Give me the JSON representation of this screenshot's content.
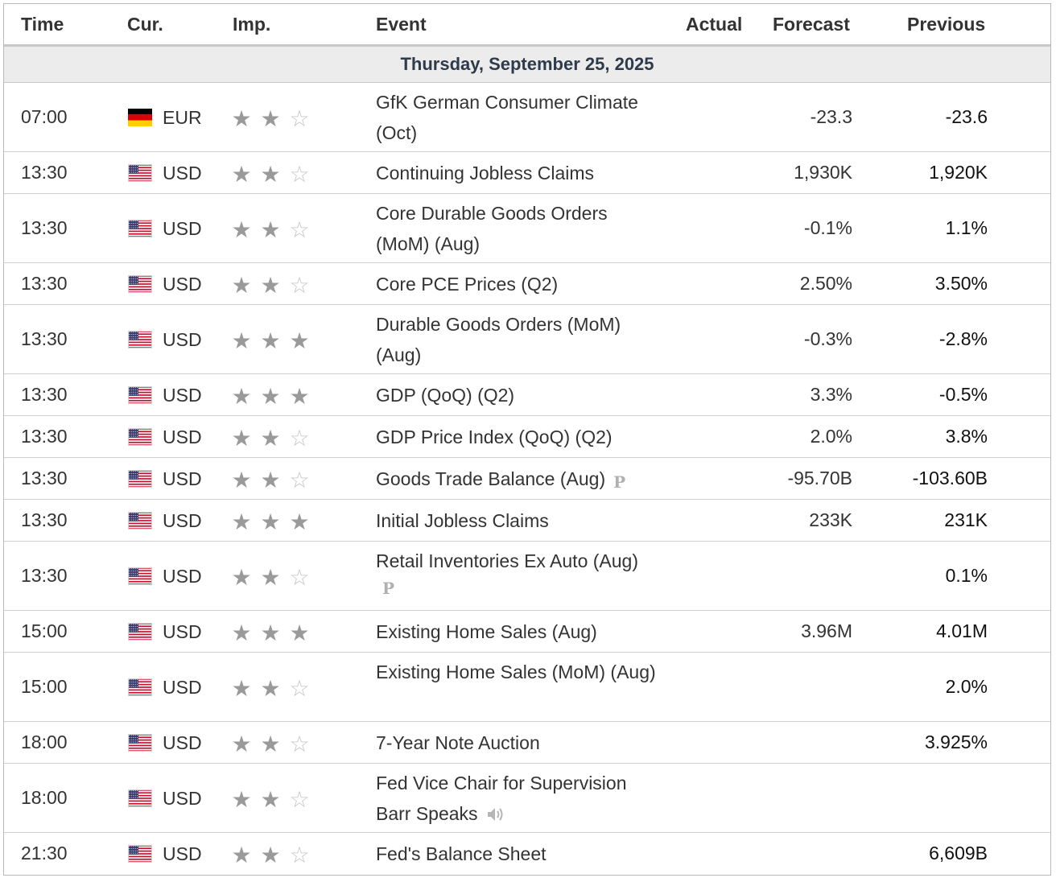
{
  "header": {
    "time": "Time",
    "currency": "Cur.",
    "importance": "Imp.",
    "event": "Event",
    "actual": "Actual",
    "forecast": "Forecast",
    "previous": "Previous"
  },
  "day_label": "Thursday, September 25, 2025",
  "colors": {
    "star_full": "#9a9a9a",
    "star_empty": "#c4c4c4",
    "day_bg": "#ececec",
    "day_text": "#2f3b4a"
  },
  "rows": [
    {
      "time": "07:00",
      "flag": "de",
      "currency": "EUR",
      "importance": 2,
      "event": "GfK German Consumer Climate (Oct)",
      "marker": "",
      "actual": "",
      "forecast": "-23.3",
      "previous": "-23.6"
    },
    {
      "time": "13:30",
      "flag": "us",
      "currency": "USD",
      "importance": 2,
      "event": "Continuing Jobless Claims",
      "marker": "",
      "actual": "",
      "forecast": "1,930K",
      "previous": "1,920K"
    },
    {
      "time": "13:30",
      "flag": "us",
      "currency": "USD",
      "importance": 2,
      "event": "Core Durable Goods Orders (MoM) (Aug)",
      "marker": "",
      "actual": "",
      "forecast": "-0.1%",
      "previous": "1.1%"
    },
    {
      "time": "13:30",
      "flag": "us",
      "currency": "USD",
      "importance": 2,
      "event": "Core PCE Prices (Q2)",
      "marker": "",
      "actual": "",
      "forecast": "2.50%",
      "previous": "3.50%"
    },
    {
      "time": "13:30",
      "flag": "us",
      "currency": "USD",
      "importance": 3,
      "event": "Durable Goods Orders (MoM) (Aug)",
      "marker": "",
      "actual": "",
      "forecast": "-0.3%",
      "previous": "-2.8%"
    },
    {
      "time": "13:30",
      "flag": "us",
      "currency": "USD",
      "importance": 3,
      "event": "GDP (QoQ) (Q2)",
      "marker": "",
      "actual": "",
      "forecast": "3.3%",
      "previous": "-0.5%"
    },
    {
      "time": "13:30",
      "flag": "us",
      "currency": "USD",
      "importance": 2,
      "event": "GDP Price Index (QoQ) (Q2)",
      "marker": "",
      "actual": "",
      "forecast": "2.0%",
      "previous": "3.8%"
    },
    {
      "time": "13:30",
      "flag": "us",
      "currency": "USD",
      "importance": 2,
      "event": "Goods Trade Balance (Aug)",
      "marker": "P",
      "actual": "",
      "forecast": "-95.70B",
      "previous": "-103.60B"
    },
    {
      "time": "13:30",
      "flag": "us",
      "currency": "USD",
      "importance": 3,
      "event": "Initial Jobless Claims",
      "marker": "",
      "actual": "",
      "forecast": "233K",
      "previous": "231K"
    },
    {
      "time": "13:30",
      "flag": "us",
      "currency": "USD",
      "importance": 2,
      "event": "Retail Inventories Ex Auto (Aug)",
      "marker": "P",
      "actual": "",
      "forecast": "",
      "previous": "0.1%"
    },
    {
      "time": "15:00",
      "flag": "us",
      "currency": "USD",
      "importance": 3,
      "event": "Existing Home Sales (Aug)",
      "marker": "",
      "actual": "",
      "forecast": "3.96M",
      "previous": "4.01M"
    },
    {
      "time": "15:00",
      "flag": "us",
      "currency": "USD",
      "importance": 2,
      "event": "Existing Home Sales (MoM) (Aug)",
      "marker": "",
      "actual": "",
      "forecast": "",
      "previous": "2.0%"
    },
    {
      "time": "18:00",
      "flag": "us",
      "currency": "USD",
      "importance": 2,
      "event": "7-Year Note Auction",
      "marker": "",
      "actual": "",
      "forecast": "",
      "previous": "3.925%"
    },
    {
      "time": "18:00",
      "flag": "us",
      "currency": "USD",
      "importance": 2,
      "event": "Fed Vice Chair for Supervision Barr Speaks",
      "marker": "speaker",
      "actual": "",
      "forecast": "",
      "previous": ""
    },
    {
      "time": "21:30",
      "flag": "us",
      "currency": "USD",
      "importance": 2,
      "event": "Fed's Balance Sheet",
      "marker": "",
      "actual": "",
      "forecast": "",
      "previous": "6,609B"
    }
  ]
}
